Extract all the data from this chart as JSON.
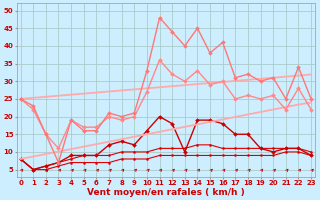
{
  "background_color": "#cceeff",
  "grid_color": "#aacccc",
  "x": [
    0,
    1,
    2,
    3,
    4,
    5,
    6,
    7,
    8,
    9,
    10,
    11,
    12,
    13,
    14,
    15,
    16,
    17,
    18,
    19,
    20,
    21,
    22,
    23
  ],
  "series": [
    {
      "name": "dark_line1",
      "color": "#dd0000",
      "linewidth": 0.8,
      "marker": "o",
      "markersize": 1.5,
      "values": [
        8,
        5,
        5,
        6,
        7,
        7,
        7,
        7,
        8,
        8,
        8,
        9,
        9,
        9,
        9,
        9,
        9,
        9,
        9,
        9,
        9,
        10,
        10,
        9
      ]
    },
    {
      "name": "dark_line2",
      "color": "#dd0000",
      "linewidth": 0.8,
      "marker": "o",
      "markersize": 1.5,
      "values": [
        8,
        5,
        6,
        7,
        8,
        9,
        9,
        9,
        10,
        10,
        10,
        11,
        11,
        11,
        12,
        12,
        11,
        11,
        11,
        11,
        11,
        11,
        11,
        10
      ]
    },
    {
      "name": "dark_line3_medium",
      "color": "#cc0000",
      "linewidth": 1.0,
      "marker": "D",
      "markersize": 2.0,
      "values": [
        8,
        5,
        6,
        7,
        9,
        9,
        9,
        12,
        13,
        12,
        16,
        20,
        18,
        10,
        19,
        19,
        18,
        15,
        15,
        11,
        10,
        11,
        11,
        9
      ]
    },
    {
      "name": "light_straight_lower",
      "color": "#ffaaaa",
      "linewidth": 1.3,
      "marker": null,
      "values": [
        8,
        8.7,
        9.4,
        10.1,
        10.8,
        11.5,
        12.2,
        12.9,
        13.6,
        14.3,
        15,
        15.7,
        16.4,
        17.1,
        17.8,
        18.5,
        19.2,
        19.9,
        20.6,
        21.3,
        22,
        22.7,
        23.4,
        24
      ]
    },
    {
      "name": "light_straight_upper",
      "color": "#ffaaaa",
      "linewidth": 1.3,
      "marker": null,
      "values": [
        25,
        25.3,
        25.6,
        25.9,
        26.2,
        26.5,
        26.8,
        27.1,
        27.4,
        27.7,
        28,
        28.3,
        28.6,
        28.9,
        29.2,
        29.5,
        29.8,
        30.1,
        30.4,
        30.7,
        31,
        31.3,
        31.6,
        31.9
      ]
    },
    {
      "name": "light_line_lower2",
      "color": "#ff8888",
      "linewidth": 1.0,
      "marker": "D",
      "markersize": 2.0,
      "values": [
        25,
        22,
        15,
        11,
        19,
        17,
        17,
        20,
        19,
        20,
        27,
        36,
        32,
        30,
        33,
        29,
        30,
        25,
        26,
        25,
        26,
        22,
        28,
        22
      ]
    },
    {
      "name": "light_line_upper2",
      "color": "#ff7777",
      "linewidth": 1.0,
      "marker": "D",
      "markersize": 2.0,
      "values": [
        25,
        23,
        15,
        7,
        19,
        16,
        16,
        21,
        20,
        21,
        33,
        48,
        44,
        40,
        45,
        38,
        41,
        31,
        32,
        30,
        31,
        25,
        34,
        25
      ]
    }
  ],
  "yticks": [
    5,
    10,
    15,
    20,
    25,
    30,
    35,
    40,
    45,
    50
  ],
  "xticks": [
    0,
    1,
    2,
    3,
    4,
    5,
    6,
    7,
    8,
    9,
    10,
    11,
    12,
    13,
    14,
    15,
    16,
    17,
    18,
    19,
    20,
    21,
    22,
    23
  ],
  "ylim": [
    3,
    52
  ],
  "xlim": [
    -0.3,
    23.3
  ],
  "xlabel": "Vent moyen/en rafales ( km/h )",
  "xlabel_color": "#cc0000",
  "tick_color": "#cc0000",
  "tick_fontsize": 5.0,
  "xlabel_fontsize": 6.5,
  "arrow_color": "#cc0000"
}
